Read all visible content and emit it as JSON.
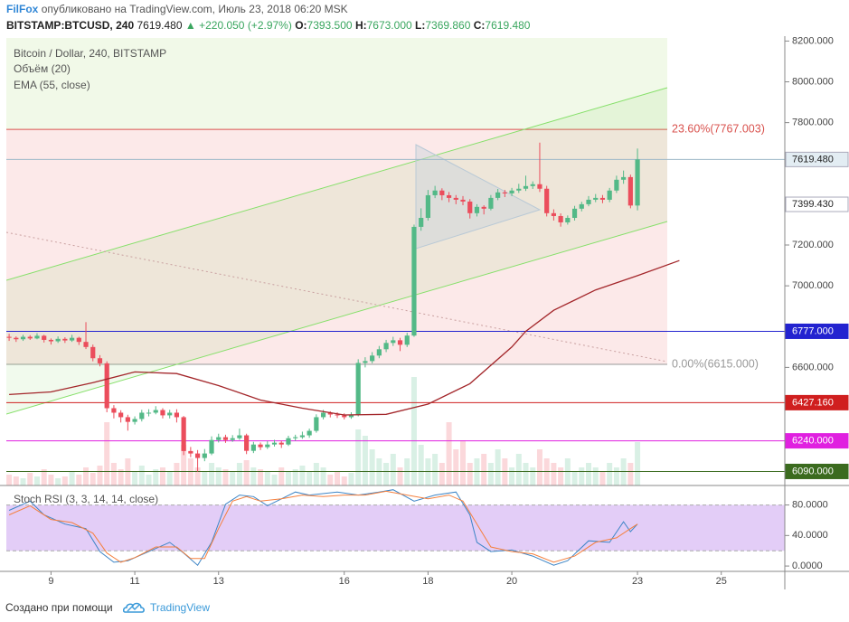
{
  "header": {
    "author": "FilFox",
    "published": "опубликовано на TradingView.com, Июль 23, 2018 06:20 MSK",
    "symbol": "BITSTAMP:BTCUSD, 240",
    "price": "7619.480",
    "change": "+220.050 (+2.97%)",
    "o_label": "O:",
    "o": "7393.500",
    "h_label": "H:",
    "h": "7673.000",
    "l_label": "L:",
    "l": "7369.860",
    "c_label": "C:",
    "c": "7619.480"
  },
  "footer": {
    "created": "Создано при помощи",
    "brand": "TradingView"
  },
  "chart_data": [
    {
      "type": "candlestick",
      "title": "Bitcoin / Dollar, 240, BITSTAMP",
      "up_color": "#53b987",
      "down_color": "#eb4d5c",
      "xlim": [
        -0.4,
        111.1
      ],
      "xticks": [
        {
          "value": 6,
          "label": "9"
        },
        {
          "value": 18,
          "label": "11"
        },
        {
          "value": 30,
          "label": "13"
        },
        {
          "value": 48,
          "label": "16"
        },
        {
          "value": 60,
          "label": "18"
        },
        {
          "value": 72,
          "label": "20"
        },
        {
          "value": 90,
          "label": "23"
        },
        {
          "value": 102,
          "label": "25"
        }
      ],
      "ylim": [
        6030,
        8215
      ],
      "yticks": [
        {
          "value": 8200,
          "label": "8200.000"
        },
        {
          "value": 8000,
          "label": "8000.000"
        },
        {
          "value": 7800,
          "label": "7800.000"
        },
        {
          "value": 7200,
          "label": "7200.000"
        },
        {
          "value": 7000,
          "label": "7000.000"
        },
        {
          "value": 6600,
          "label": "6600.000"
        }
      ],
      "ohlc": [
        [
          6750,
          6765,
          6730,
          6745
        ],
        [
          6745,
          6752,
          6725,
          6738
        ],
        [
          6738,
          6760,
          6730,
          6750
        ],
        [
          6750,
          6758,
          6735,
          6742
        ],
        [
          6742,
          6768,
          6738,
          6755
        ],
        [
          6755,
          6760,
          6722,
          6735
        ],
        [
          6735,
          6742,
          6712,
          6728
        ],
        [
          6728,
          6752,
          6720,
          6740
        ],
        [
          6740,
          6748,
          6720,
          6732
        ],
        [
          6732,
          6760,
          6725,
          6745
        ],
        [
          6745,
          6750,
          6710,
          6725
        ],
        [
          6725,
          6822,
          6690,
          6700
        ],
        [
          6700,
          6712,
          6630,
          6645
        ],
        [
          6645,
          6660,
          6605,
          6620
        ],
        [
          6620,
          6630,
          6380,
          6400
        ],
        [
          6400,
          6415,
          6350,
          6378
        ],
        [
          6378,
          6390,
          6330,
          6356
        ],
        [
          6356,
          6368,
          6290,
          6333
        ],
        [
          6333,
          6360,
          6320,
          6347
        ],
        [
          6347,
          6392,
          6335,
          6378
        ],
        [
          6378,
          6395,
          6360,
          6378
        ],
        [
          6378,
          6410,
          6370,
          6391
        ],
        [
          6391,
          6400,
          6350,
          6365
        ],
        [
          6365,
          6392,
          6350,
          6378
        ],
        [
          6378,
          6395,
          6330,
          6356
        ],
        [
          6356,
          6362,
          6170,
          6190
        ],
        [
          6190,
          6210,
          6160,
          6178
        ],
        [
          6178,
          6195,
          6089,
          6156
        ],
        [
          6156,
          6200,
          6140,
          6178
        ],
        [
          6178,
          6262,
          6170,
          6244
        ],
        [
          6244,
          6275,
          6232,
          6258
        ],
        [
          6258,
          6270,
          6230,
          6244
        ],
        [
          6244,
          6268,
          6235,
          6253
        ],
        [
          6253,
          6300,
          6245,
          6267
        ],
        [
          6267,
          6275,
          6175,
          6191
        ],
        [
          6191,
          6235,
          6180,
          6222
        ],
        [
          6222,
          6232,
          6195,
          6209
        ],
        [
          6209,
          6238,
          6200,
          6222
        ],
        [
          6222,
          6245,
          6212,
          6231
        ],
        [
          6231,
          6240,
          6205,
          6222
        ],
        [
          6222,
          6265,
          6215,
          6253
        ],
        [
          6253,
          6270,
          6240,
          6258
        ],
        [
          6258,
          6285,
          6250,
          6267
        ],
        [
          6267,
          6300,
          6255,
          6289
        ],
        [
          6289,
          6370,
          6280,
          6356
        ],
        [
          6356,
          6392,
          6345,
          6378
        ],
        [
          6378,
          6385,
          6355,
          6369
        ],
        [
          6369,
          6380,
          6352,
          6365
        ],
        [
          6365,
          6375,
          6345,
          6356
        ],
        [
          6356,
          6380,
          6348,
          6369
        ],
        [
          6369,
          6640,
          6360,
          6622
        ],
        [
          6622,
          6650,
          6600,
          6631
        ],
        [
          6631,
          6675,
          6620,
          6658
        ],
        [
          6658,
          6705,
          6645,
          6689
        ],
        [
          6689,
          6735,
          6675,
          6720
        ],
        [
          6720,
          6750,
          6705,
          6733
        ],
        [
          6733,
          6745,
          6680,
          6711
        ],
        [
          6711,
          6770,
          6700,
          6756
        ],
        [
          6756,
          7300,
          6750,
          7289
        ],
        [
          7289,
          7380,
          7270,
          7333
        ],
        [
          7333,
          7470,
          7320,
          7444
        ],
        [
          7444,
          7490,
          7430,
          7467
        ],
        [
          7467,
          7478,
          7420,
          7444
        ],
        [
          7444,
          7460,
          7410,
          7431
        ],
        [
          7431,
          7445,
          7400,
          7422
        ],
        [
          7422,
          7440,
          7395,
          7413
        ],
        [
          7413,
          7425,
          7330,
          7356
        ],
        [
          7356,
          7400,
          7340,
          7387
        ],
        [
          7387,
          7395,
          7350,
          7378
        ],
        [
          7378,
          7445,
          7370,
          7431
        ],
        [
          7431,
          7475,
          7420,
          7458
        ],
        [
          7458,
          7470,
          7435,
          7453
        ],
        [
          7453,
          7480,
          7440,
          7467
        ],
        [
          7467,
          7500,
          7455,
          7476
        ],
        [
          7476,
          7540,
          7465,
          7489
        ],
        [
          7489,
          7512,
          7475,
          7498
        ],
        [
          7498,
          7702,
          7460,
          7476
        ],
        [
          7476,
          7490,
          7340,
          7356
        ],
        [
          7356,
          7375,
          7320,
          7342
        ],
        [
          7342,
          7355,
          7290,
          7311
        ],
        [
          7311,
          7345,
          7300,
          7333
        ],
        [
          7333,
          7392,
          7320,
          7378
        ],
        [
          7378,
          7412,
          7365,
          7400
        ],
        [
          7400,
          7440,
          7390,
          7422
        ],
        [
          7422,
          7450,
          7410,
          7431
        ],
        [
          7431,
          7445,
          7405,
          7422
        ],
        [
          7422,
          7480,
          7410,
          7467
        ],
        [
          7467,
          7540,
          7455,
          7520
        ],
        [
          7520,
          7565,
          7500,
          7533
        ],
        [
          7533,
          7545,
          7380,
          7393.5
        ],
        [
          7393.5,
          7673,
          7369.86,
          7619.48
        ]
      ],
      "volume": {
        "name": "Объём (20)",
        "values": [
          12,
          10,
          8,
          14,
          10,
          18,
          12,
          8,
          10,
          15,
          12,
          20,
          14,
          22,
          70,
          25,
          18,
          30,
          15,
          22,
          12,
          18,
          20,
          15,
          25,
          45,
          30,
          20,
          15,
          25,
          20,
          18,
          15,
          25,
          28,
          20,
          18,
          15,
          12,
          20,
          15,
          18,
          22,
          15,
          25,
          20,
          12,
          15,
          10,
          14,
          62,
          55,
          40,
          30,
          25,
          35,
          20,
          30,
          120,
          45,
          30,
          35,
          25,
          70,
          40,
          50,
          25,
          30,
          35,
          25,
          40,
          30,
          20,
          35,
          25,
          20,
          40,
          30,
          25,
          20,
          30,
          15,
          20,
          25,
          20,
          15,
          25,
          20,
          30,
          25,
          48
        ]
      },
      "ema": {
        "name": "EMA (55, close)",
        "color": "#a3262a",
        "x": [
          0,
          6,
          12,
          18,
          24,
          30,
          36,
          42,
          48,
          54,
          60,
          66,
          72,
          74,
          78,
          84,
          90,
          96
        ],
        "values": [
          6467,
          6480,
          6525,
          6578,
          6570,
          6511,
          6440,
          6400,
          6367,
          6370,
          6420,
          6520,
          6700,
          6777,
          6880,
          6980,
          7050,
          7124
        ]
      },
      "levels": [
        {
          "value": 6777,
          "label": "6777.000",
          "color": "#2323d0"
        },
        {
          "value": 6427.16,
          "label": "6427.160",
          "color": "#d01f1f"
        },
        {
          "value": 6240,
          "label": "6240.000",
          "color": "#e020e0"
        },
        {
          "value": 6090,
          "label": "6090.000",
          "color": "#3b6b1f"
        }
      ],
      "price_marks": [
        {
          "value": 7619.48,
          "label": "7619.480",
          "color": "#9bb7c7"
        },
        {
          "value": 7399.43,
          "label": "7399.430",
          "color": "#ffffff"
        }
      ],
      "fib": [
        {
          "value": 7767.003,
          "label": "23.60%(7767.003)",
          "color": "#d9534f"
        },
        {
          "value": 6615,
          "label": "0.00%(6615.000)",
          "color": "#999999"
        }
      ]
    },
    {
      "type": "line",
      "title": "Stoch RSI (3, 3, 14, 14, close)",
      "ylim": [
        -7,
        102
      ],
      "yticks": [
        {
          "value": 80,
          "label": "80.0000"
        },
        {
          "value": 40,
          "label": "40.0000"
        },
        {
          "value": 0,
          "label": "0.0000"
        }
      ],
      "band": [
        20,
        80
      ],
      "series": [
        {
          "color": "#3d85c6",
          "x": [
            0,
            3,
            5,
            8,
            11,
            13,
            15,
            17,
            20,
            23,
            25,
            27,
            29,
            31,
            33,
            35,
            37,
            41,
            43,
            47,
            50,
            53,
            55,
            58,
            61,
            64,
            66,
            67,
            69,
            72,
            75,
            78,
            80,
            83,
            86,
            88,
            89,
            90
          ],
          "values": [
            73,
            85,
            67,
            55,
            49,
            19,
            5,
            7,
            19,
            31,
            17,
            1,
            31,
            81,
            93,
            91,
            79,
            97,
            93,
            97,
            93,
            97,
            100,
            85,
            93,
            97,
            67,
            31,
            19,
            21,
            13,
            1,
            7,
            33,
            31,
            58,
            45,
            55
          ]
        },
        {
          "color": "#f5803e",
          "x": [
            0,
            3,
            6,
            9,
            12,
            14,
            16,
            18,
            21,
            24,
            26,
            28,
            30,
            32,
            34,
            36,
            39,
            42,
            45,
            48,
            51,
            54,
            57,
            60,
            63,
            65,
            67,
            69,
            72,
            75,
            78,
            81,
            84,
            87,
            89,
            90
          ],
          "values": [
            67,
            79,
            61,
            57,
            43,
            17,
            5,
            11,
            25,
            25,
            10,
            10,
            49,
            85,
            91,
            85,
            88,
            93,
            91,
            93,
            93,
            98,
            93,
            88,
            93,
            85,
            55,
            25,
            19,
            16,
            5,
            13,
            31,
            37,
            49,
            55
          ]
        }
      ]
    }
  ]
}
